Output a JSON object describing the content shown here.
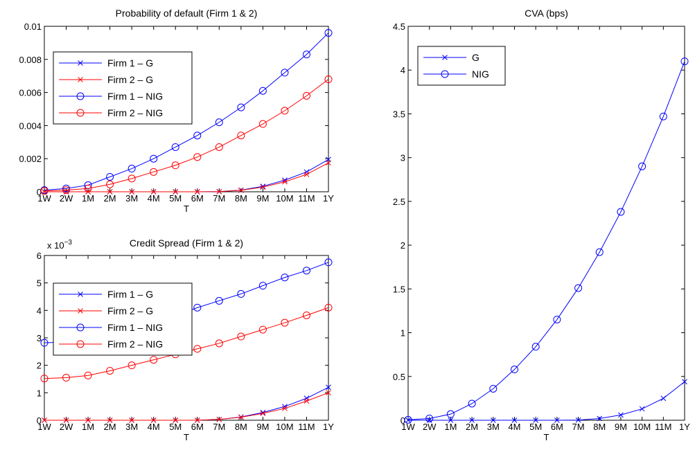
{
  "colors": {
    "blue": "#0000ff",
    "red": "#ff0000",
    "axis": "#000000"
  },
  "chart_data": [
    {
      "id": "pd",
      "type": "line",
      "title": "Probability of default (Firm 1 & 2)",
      "xlabel": "T",
      "ylabel": "",
      "categories": [
        "1W",
        "2W",
        "1M",
        "2M",
        "3M",
        "4M",
        "5M",
        "6M",
        "7M",
        "8M",
        "9M",
        "10M",
        "11M",
        "1Y"
      ],
      "ylim": [
        0,
        0.01
      ],
      "yticks": [
        0,
        0.002,
        0.004,
        0.006,
        0.008,
        0.01
      ],
      "ytick_labels": [
        "0",
        "0.002",
        "0.004",
        "0.006",
        "0.008",
        "0.01"
      ],
      "yexponent": "",
      "grid": false,
      "legend": "upper-left",
      "series": [
        {
          "name": "Firm 1 – G",
          "color": "#0000ff",
          "marker": "x",
          "values": [
            0,
            0,
            0,
            0,
            0,
            0,
            0,
            0,
            1e-05,
            0.0001,
            0.00033,
            0.0007,
            0.0012,
            0.00195
          ]
        },
        {
          "name": "Firm 2 – G",
          "color": "#ff0000",
          "marker": "x",
          "values": [
            0,
            0,
            0,
            0,
            0,
            0,
            0,
            0,
            1e-05,
            9e-05,
            0.00028,
            0.0006,
            0.00105,
            0.00175
          ]
        },
        {
          "name": "Firm 1 – NIG",
          "color": "#0000ff",
          "marker": "o",
          "values": [
            0.0001,
            0.0002,
            0.0004,
            0.0009,
            0.0014,
            0.002,
            0.0027,
            0.0034,
            0.0042,
            0.0051,
            0.0061,
            0.0072,
            0.0083,
            0.0096
          ]
        },
        {
          "name": "Firm 2 – NIG",
          "color": "#ff0000",
          "marker": "o",
          "values": [
            5e-05,
            0.0001,
            0.0002,
            0.00045,
            0.0008,
            0.0012,
            0.0016,
            0.0021,
            0.0027,
            0.0034,
            0.0041,
            0.0049,
            0.0058,
            0.0068
          ]
        }
      ]
    },
    {
      "id": "cs",
      "type": "line",
      "title": "Credit Spread (Firm 1 & 2)",
      "xlabel": "T",
      "ylabel": "",
      "categories": [
        "1W",
        "2W",
        "1M",
        "2M",
        "3M",
        "4M",
        "5M",
        "6M",
        "7M",
        "8M",
        "9M",
        "10M",
        "11M",
        "1Y"
      ],
      "ylim": [
        0,
        0.006
      ],
      "yticks": [
        0,
        0.001,
        0.002,
        0.003,
        0.004,
        0.005,
        0.006
      ],
      "ytick_labels": [
        "0",
        "1",
        "2",
        "3",
        "4",
        "5",
        "6"
      ],
      "yexponent": "x 10",
      "yexponent_power": "−3",
      "grid": false,
      "legend": "upper-left",
      "series": [
        {
          "name": "Firm 1 – G",
          "color": "#0000ff",
          "marker": "x",
          "values": [
            0,
            0,
            0,
            0,
            0,
            0,
            0,
            0,
            3e-05,
            0.00012,
            0.00028,
            0.0005,
            0.0008,
            0.0012
          ]
        },
        {
          "name": "Firm 2 – G",
          "color": "#ff0000",
          "marker": "x",
          "values": [
            0,
            0,
            0,
            0,
            0,
            0,
            0,
            0,
            3e-05,
            0.00011,
            0.00025,
            0.00043,
            0.0007,
            0.001
          ]
        },
        {
          "name": "Firm 1 – NIG",
          "color": "#0000ff",
          "marker": "o",
          "values": [
            0.00282,
            0.00285,
            0.003,
            0.0032,
            0.0034,
            0.0036,
            0.0038,
            0.0041,
            0.00435,
            0.0046,
            0.0049,
            0.0052,
            0.00545,
            0.00575
          ]
        },
        {
          "name": "Firm 2 – NIG",
          "color": "#ff0000",
          "marker": "o",
          "values": [
            0.00152,
            0.00155,
            0.00163,
            0.0018,
            0.002,
            0.0022,
            0.0024,
            0.0026,
            0.0028,
            0.00305,
            0.0033,
            0.00355,
            0.00382,
            0.0041
          ]
        }
      ]
    },
    {
      "id": "cva",
      "type": "line",
      "title": "CVA (bps)",
      "xlabel": "T",
      "ylabel": "",
      "categories": [
        "1W",
        "2W",
        "1M",
        "2M",
        "3M",
        "4M",
        "5M",
        "6M",
        "7M",
        "8M",
        "9M",
        "10M",
        "11M",
        "1Y"
      ],
      "ylim": [
        0,
        4.5
      ],
      "yticks": [
        0,
        0.5,
        1,
        1.5,
        2,
        2.5,
        3,
        3.5,
        4,
        4.5
      ],
      "ytick_labels": [
        "0",
        "0.5",
        "1",
        "1.5",
        "2",
        "2.5",
        "3",
        "3.5",
        "4",
        "4.5"
      ],
      "yexponent": "",
      "grid": false,
      "legend": "upper-left",
      "series": [
        {
          "name": "G",
          "color": "#0000ff",
          "marker": "x",
          "values": [
            0,
            0,
            0,
            0,
            0,
            0,
            0,
            0,
            0.002,
            0.02,
            0.06,
            0.13,
            0.25,
            0.44
          ]
        },
        {
          "name": "NIG",
          "color": "#0000ff",
          "marker": "o",
          "values": [
            0.005,
            0.02,
            0.07,
            0.19,
            0.36,
            0.58,
            0.84,
            1.15,
            1.51,
            1.92,
            2.38,
            2.9,
            3.47,
            4.1
          ]
        }
      ]
    }
  ]
}
